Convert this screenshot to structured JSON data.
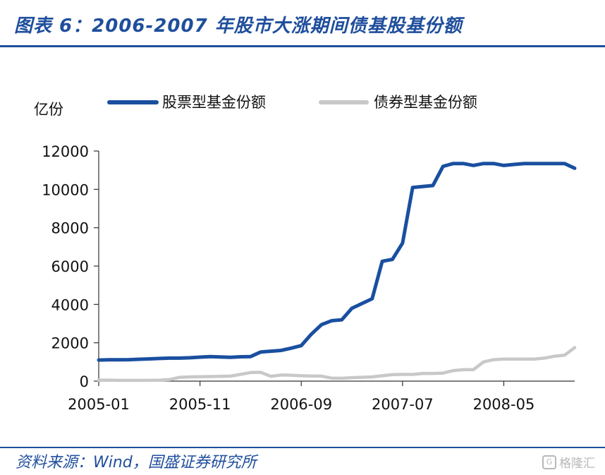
{
  "header": {
    "title": "图表 6：2006-2007 年股市大涨期间债基股基份额"
  },
  "footer": {
    "source": "资料来源：Wind，国盛证券研究所",
    "watermark": "格隆汇"
  },
  "colors": {
    "brand": "#1f4e9c",
    "equity": "#1a4fa0",
    "bond": "#c8c8c8"
  },
  "chart_data": {
    "type": "line",
    "title": "",
    "ylabel": "亿份",
    "xlabel": "",
    "ylim": [
      0,
      12000
    ],
    "yticks": [
      0,
      2000,
      4000,
      6000,
      8000,
      10000,
      12000
    ],
    "xtick_labels": [
      "2005-01",
      "2005-11",
      "2006-09",
      "2007-07",
      "2008-05"
    ],
    "x": [
      "2005-01",
      "2005-02",
      "2005-03",
      "2005-04",
      "2005-05",
      "2005-06",
      "2005-07",
      "2005-08",
      "2005-09",
      "2005-10",
      "2005-11",
      "2005-12",
      "2006-01",
      "2006-02",
      "2006-03",
      "2006-04",
      "2006-05",
      "2006-06",
      "2006-07",
      "2006-08",
      "2006-09",
      "2006-10",
      "2006-11",
      "2006-12",
      "2007-01",
      "2007-02",
      "2007-03",
      "2007-04",
      "2007-05",
      "2007-06",
      "2007-07",
      "2007-08",
      "2007-09",
      "2007-10",
      "2007-11",
      "2007-12",
      "2008-01",
      "2008-02",
      "2008-03",
      "2008-04",
      "2008-05",
      "2008-06",
      "2008-07",
      "2008-08",
      "2008-09",
      "2008-10",
      "2008-11",
      "2008-12"
    ],
    "legend_position": "top",
    "series": [
      {
        "name": "股票型基金份额",
        "color": "#1a4fa0",
        "values": [
          1100,
          1110,
          1110,
          1120,
          1140,
          1160,
          1180,
          1200,
          1200,
          1220,
          1250,
          1280,
          1260,
          1240,
          1270,
          1280,
          1520,
          1560,
          1600,
          1720,
          1850,
          2450,
          2950,
          3150,
          3200,
          3800,
          4050,
          4300,
          6250,
          6350,
          7200,
          10100,
          10150,
          10200,
          11200,
          11350,
          11350,
          11250,
          11350,
          11350,
          11250,
          11300,
          11350,
          11350,
          11350,
          11350,
          11350,
          11100
        ]
      },
      {
        "name": "债券型基金份额",
        "color": "#c8c8c8",
        "values": [
          50,
          50,
          40,
          40,
          40,
          40,
          50,
          80,
          200,
          220,
          230,
          240,
          250,
          260,
          350,
          450,
          460,
          250,
          320,
          310,
          280,
          270,
          260,
          160,
          150,
          180,
          200,
          220,
          280,
          340,
          350,
          350,
          400,
          400,
          420,
          550,
          600,
          600,
          1000,
          1120,
          1150,
          1150,
          1150,
          1150,
          1200,
          1300,
          1350,
          1750
        ]
      }
    ]
  }
}
